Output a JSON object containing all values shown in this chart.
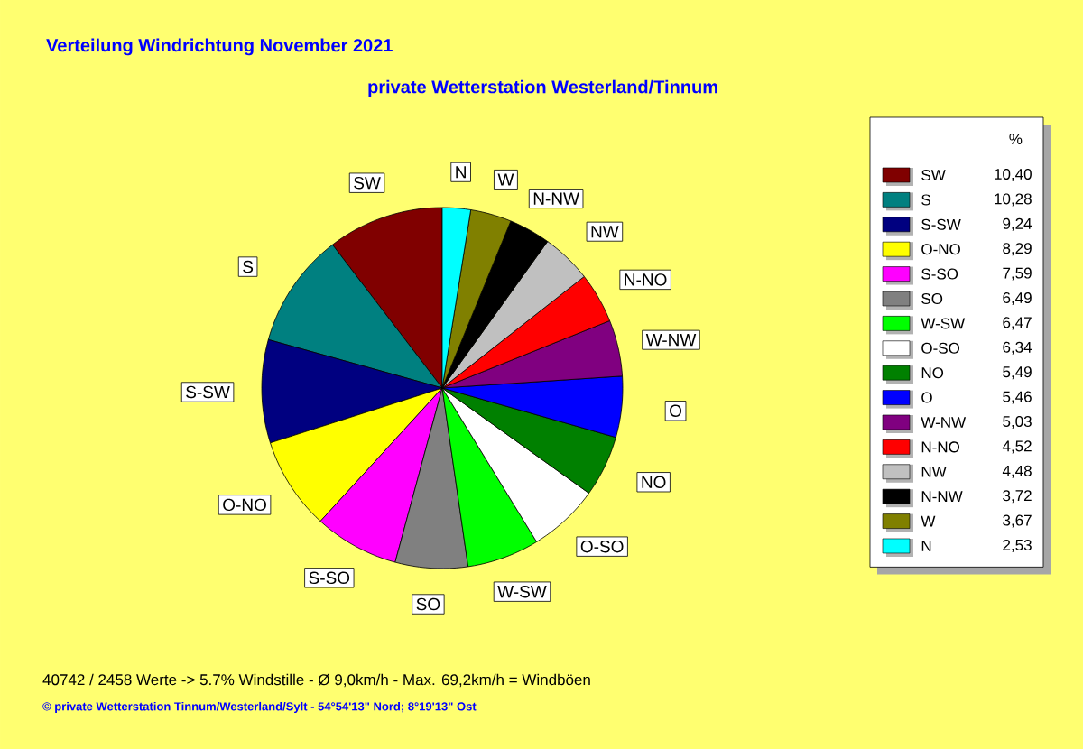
{
  "chart_data": {
    "type": "pie",
    "title": "Verteilung Windrichtung   November 2021",
    "subtitle": "private Wetterstation Westerland/Tinnum",
    "legend_title": "%",
    "legend": "right",
    "categories": [
      "SW",
      "S",
      "S-SW",
      "O-NO",
      "S-SO",
      "SO",
      "W-SW",
      "O-SO",
      "NO",
      "O",
      "W-NW",
      "N-NO",
      "NW",
      "N-NW",
      "W",
      "N"
    ],
    "values": [
      10.4,
      10.28,
      9.24,
      8.29,
      7.59,
      6.49,
      6.47,
      6.34,
      5.49,
      5.46,
      5.03,
      4.52,
      4.48,
      3.72,
      3.67,
      2.53
    ],
    "value_labels": [
      "10,40",
      "10,28",
      "9,24",
      "8,29",
      "7,59",
      "6,49",
      "6,47",
      "6,34",
      "5,49",
      "5,46",
      "5,03",
      "4,52",
      "4,48",
      "3,72",
      "3,67",
      "2,53"
    ],
    "colors": [
      "#800000",
      "#008080",
      "#000080",
      "#ffff00",
      "#ff00ff",
      "#808080",
      "#00ff00",
      "#ffffff",
      "#008000",
      "#0000ff",
      "#800080",
      "#ff0000",
      "#c0c0c0",
      "#000000",
      "#808000",
      "#00ffff"
    ],
    "annotations": [
      "40742 / 2458 Werte  -> 5.7% Windstille   -   Ø 9,0km/h  -  Max. 69,2km/h = Windböen",
      "© private Wetterstation Tinnum/Westerland/Sylt   -   54°54'13\" Nord; 8°19'13\" Ost"
    ]
  }
}
